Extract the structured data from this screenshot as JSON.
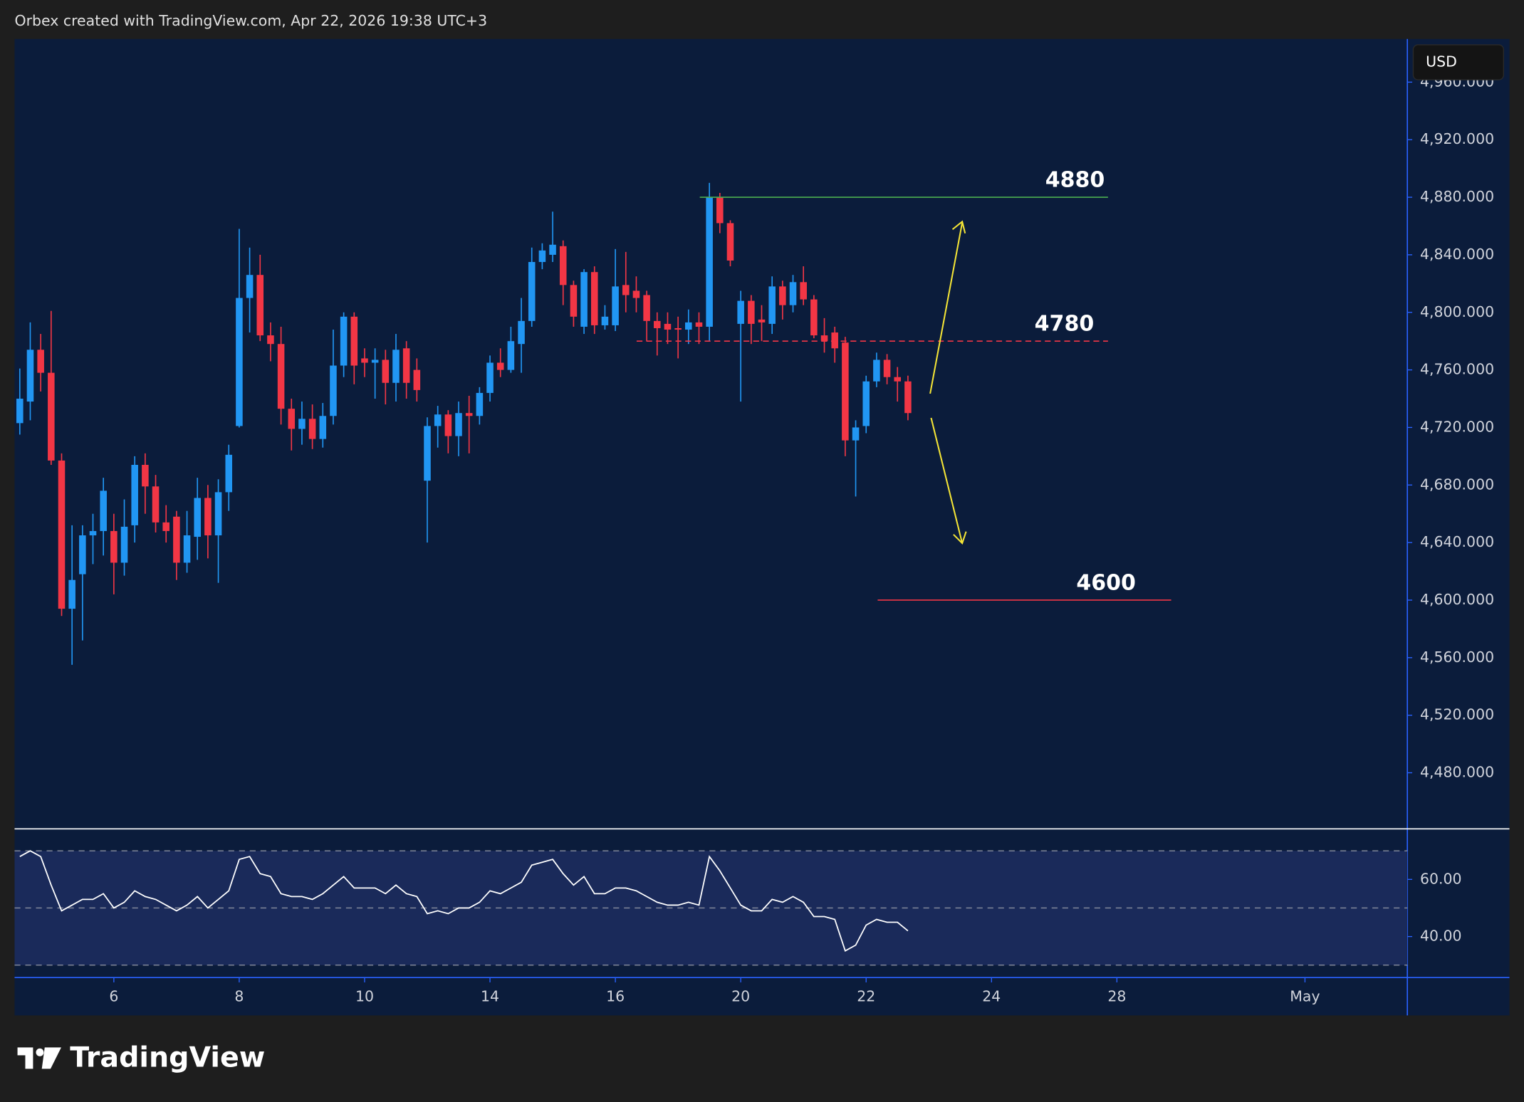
{
  "header": "Orbex created with TradingView.com, Apr 22, 2026 19:38 UTC+3",
  "brand": "TradingView",
  "currency": "USD",
  "chart_data": {
    "type": "candlestick",
    "up_color": "#2196f3",
    "down_color": "#f23645",
    "open": [
      4723,
      4738,
      4774,
      4758,
      4697,
      4594,
      4618,
      4645,
      4648,
      4648,
      4626,
      4652,
      4694,
      4679,
      4654,
      4658,
      4626,
      4644,
      4671,
      4645,
      4675,
      4721,
      4810,
      4826,
      4784,
      4778,
      4733,
      4719,
      4726,
      4712,
      4728,
      4763,
      4797,
      4768,
      4765,
      4767,
      4751,
      4775,
      4760,
      4683,
      4721,
      4729,
      4714,
      4730,
      4728,
      4744,
      4765,
      4760,
      4778,
      4794,
      4835,
      4840,
      4846,
      4819,
      4790,
      4828,
      4791,
      4791,
      4819,
      4815,
      4812,
      4794,
      4792,
      4789,
      4788,
      4793,
      4790,
      4880,
      4862,
      4792,
      4808,
      4795,
      4792,
      4818,
      4805,
      4821,
      4809,
      4784,
      4786,
      4779,
      4711,
      4721,
      4752,
      4767,
      4755,
      4752
    ],
    "high": [
      4761,
      4793,
      4785,
      4801,
      4702,
      4652,
      4652,
      4660,
      4685,
      4660,
      4670,
      4700,
      4702,
      4687,
      4666,
      4662,
      4662,
      4685,
      4680,
      4684,
      4708,
      4858,
      4845,
      4840,
      4793,
      4790,
      4740,
      4738,
      4736,
      4737,
      4788,
      4800,
      4800,
      4775,
      4775,
      4774,
      4785,
      4780,
      4768,
      4727,
      4735,
      4732,
      4738,
      4742,
      4748,
      4770,
      4775,
      4790,
      4810,
      4845,
      4848,
      4870,
      4850,
      4822,
      4830,
      4832,
      4805,
      4844,
      4842,
      4825,
      4815,
      4800,
      4800,
      4797,
      4802,
      4800,
      4890,
      4883,
      4864,
      4815,
      4812,
      4805,
      4825,
      4822,
      4826,
      4832,
      4812,
      4796,
      4790,
      4783,
      4725,
      4756,
      4772,
      4771,
      4762,
      4756
    ],
    "low": [
      4715,
      4725,
      4745,
      4694,
      4589,
      4555,
      4572,
      4625,
      4631,
      4604,
      4617,
      4640,
      4660,
      4647,
      4640,
      4614,
      4619,
      4628,
      4629,
      4612,
      4662,
      4720,
      4786,
      4780,
      4766,
      4722,
      4704,
      4708,
      4705,
      4706,
      4722,
      4755,
      4750,
      4755,
      4740,
      4736,
      4738,
      4740,
      4738,
      4640,
      4706,
      4702,
      4700,
      4702,
      4722,
      4738,
      4755,
      4758,
      4758,
      4790,
      4830,
      4835,
      4805,
      4790,
      4785,
      4785,
      4788,
      4787,
      4800,
      4800,
      4780,
      4770,
      4778,
      4768,
      4778,
      4778,
      4780,
      4855,
      4832,
      4738,
      4778,
      4780,
      4785,
      4795,
      4800,
      4805,
      4782,
      4772,
      4765,
      4700,
      4672,
      4716,
      4748,
      4750,
      4738,
      4725
    ],
    "close": [
      4740,
      4774,
      4758,
      4697,
      4594,
      4614,
      4645,
      4648,
      4676,
      4626,
      4651,
      4694,
      4679,
      4654,
      4648,
      4626,
      4645,
      4671,
      4645,
      4675,
      4701,
      4810,
      4826,
      4784,
      4778,
      4733,
      4719,
      4726,
      4712,
      4728,
      4763,
      4797,
      4763,
      4765,
      4767,
      4751,
      4774,
      4751,
      4746,
      4721,
      4729,
      4714,
      4730,
      4728,
      4744,
      4765,
      4760,
      4780,
      4794,
      4835,
      4843,
      4847,
      4819,
      4797,
      4828,
      4791,
      4797,
      4818,
      4812,
      4810,
      4794,
      4789,
      4788,
      4788,
      4793,
      4790,
      4880,
      4862,
      4836,
      4808,
      4792,
      4793,
      4818,
      4805,
      4821,
      4809,
      4784,
      4780,
      4775,
      4711,
      4720,
      4752,
      4767,
      4755,
      4752,
      4730
    ],
    "xlim": [
      -0.5,
      132.8
    ],
    "xticks": [
      {
        "value": 9,
        "label": "6"
      },
      {
        "value": 21,
        "label": "8"
      },
      {
        "value": 33,
        "label": "10"
      },
      {
        "value": 45,
        "label": "14"
      },
      {
        "value": 57,
        "label": "16"
      },
      {
        "value": 69,
        "label": "20"
      },
      {
        "value": 81,
        "label": "22"
      },
      {
        "value": 93,
        "label": "24"
      },
      {
        "value": 105,
        "label": "28"
      },
      {
        "value": 123,
        "label": "May"
      }
    ],
    "ylim": [
      4441,
      4990
    ],
    "yticks": [
      {
        "value": 4480,
        "label": "4,480.000"
      },
      {
        "value": 4520,
        "label": "4,520.000"
      },
      {
        "value": 4560,
        "label": "4,560.000"
      },
      {
        "value": 4600,
        "label": "4,600.000"
      },
      {
        "value": 4640,
        "label": "4,640.000"
      },
      {
        "value": 4680,
        "label": "4,680.000"
      },
      {
        "value": 4720,
        "label": "4,720.000"
      },
      {
        "value": 4760,
        "label": "4,760.000"
      },
      {
        "value": 4800,
        "label": "4,800.000"
      },
      {
        "value": 4840,
        "label": "4,840.000"
      },
      {
        "value": 4880,
        "label": "4,880.000"
      },
      {
        "value": 4920,
        "label": "4,920.000"
      },
      {
        "value": 4960,
        "label": "4,960.000"
      }
    ],
    "levels": [
      {
        "value": 4880,
        "color": "#4caf50",
        "dashed": false
      },
      {
        "value": 4780,
        "color": "#f23645",
        "dashed": true
      },
      {
        "value": 4600,
        "color": "#f23645",
        "dashed": false
      }
    ],
    "rsi": {
      "color": "#ffffff",
      "values": [
        68,
        70,
        68,
        58,
        49,
        51,
        53,
        53,
        55,
        50,
        52,
        56,
        54,
        53,
        51,
        49,
        51,
        54,
        50,
        53,
        56,
        67,
        68,
        62,
        61,
        55,
        54,
        54,
        53,
        55,
        58,
        61,
        57,
        57,
        57,
        55,
        58,
        55,
        54,
        48,
        49,
        48,
        50,
        50,
        52,
        56,
        55,
        57,
        59,
        65,
        66,
        67,
        62,
        58,
        61,
        55,
        55,
        57,
        57,
        56,
        54,
        52,
        51,
        51,
        52,
        51,
        68,
        63,
        57,
        51,
        49,
        49,
        53,
        52,
        54,
        52,
        47,
        47,
        46,
        35,
        37,
        44,
        46,
        45,
        45,
        42
      ],
      "ylim": [
        26,
        77
      ],
      "yticks": [
        {
          "value": 40,
          "label": "40.00"
        },
        {
          "value": 60,
          "label": "60.00"
        }
      ],
      "bands": [
        30,
        50,
        70
      ],
      "band_color": "#1a2a5a"
    }
  }
}
